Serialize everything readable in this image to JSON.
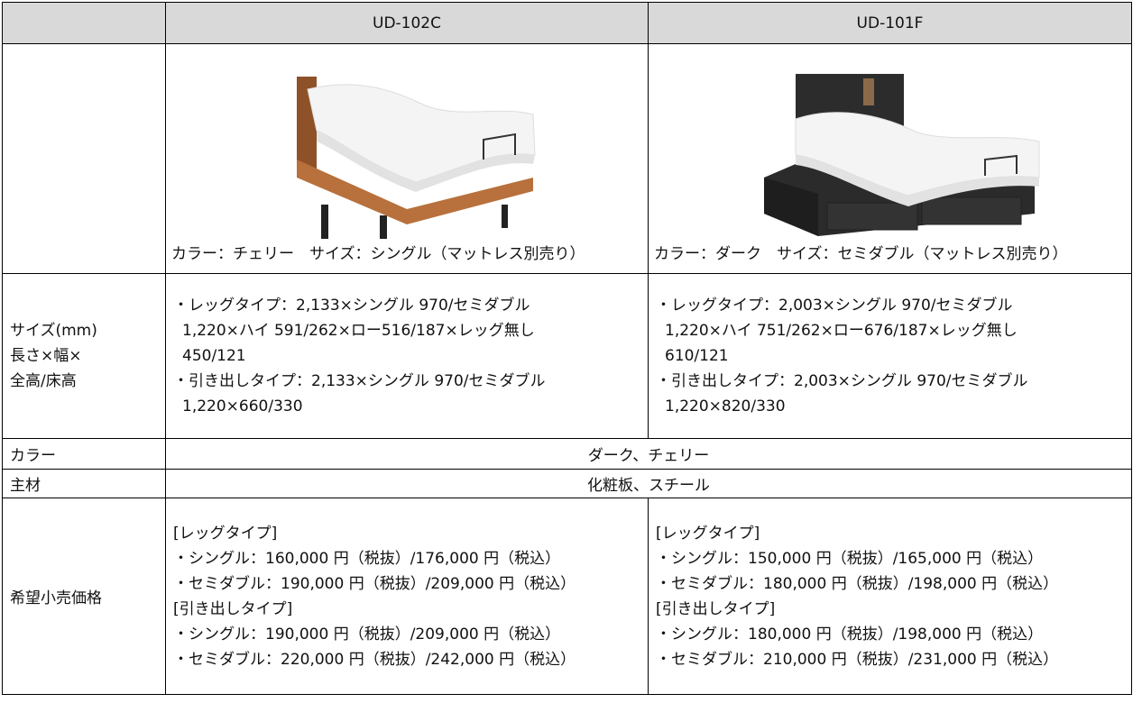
{
  "header": {
    "models": [
      "UD-102C",
      "UD-101F"
    ]
  },
  "images": {
    "captions": [
      "カラー：チェリー　サイズ：シングル（マットレス別売り）",
      "カラー：ダーク　サイズ：セミダブル（マットレス別売り）"
    ]
  },
  "rows": {
    "size": {
      "label": [
        "サイズ(mm)",
        "長さ×幅×",
        "全高/床高"
      ],
      "cells": [
        [
          "・レッグタイプ：2,133×シングル 970/セミダブル",
          "1,220×ハイ 591/262×ロー516/187×レッグ無し",
          "450/121",
          "・引き出しタイプ：2,133×シングル 970/セミダブル",
          "1,220×660/330"
        ],
        [
          "・レッグタイプ：2,003×シングル 970/セミダブル",
          "1,220×ハイ 751/262×ロー676/187×レッグ無し",
          "610/121",
          "・引き出しタイプ：2,003×シングル 970/セミダブル",
          "1,220×820/330"
        ]
      ]
    },
    "color": {
      "label": "カラー",
      "value": "ダーク、チェリー"
    },
    "material": {
      "label": "主材",
      "value": "化粧板、スチール"
    },
    "price": {
      "label": "希望小売価格",
      "cells": [
        [
          "[レッグタイプ]",
          "・シングル：160,000 円（税抜）/176,000 円（税込）",
          "・セミダブル：190,000 円（税抜）/209,000 円（税込）",
          "[引き出しタイプ]",
          "・シングル：190,000 円（税抜）/209,000 円（税込）",
          "・セミダブル：220,000 円（税抜）/242,000 円（税込）"
        ],
        [
          "[レッグタイプ]",
          "・シングル：150,000 円（税抜）/165,000 円（税込）",
          "・セミダブル：180,000 円（税抜）/198,000 円（税込）",
          "[引き出しタイプ]",
          "・シングル：180,000 円（税抜）/198,000 円（税込）",
          "・セミダブル：210,000 円（税抜）/231,000 円（税込）"
        ]
      ]
    }
  }
}
